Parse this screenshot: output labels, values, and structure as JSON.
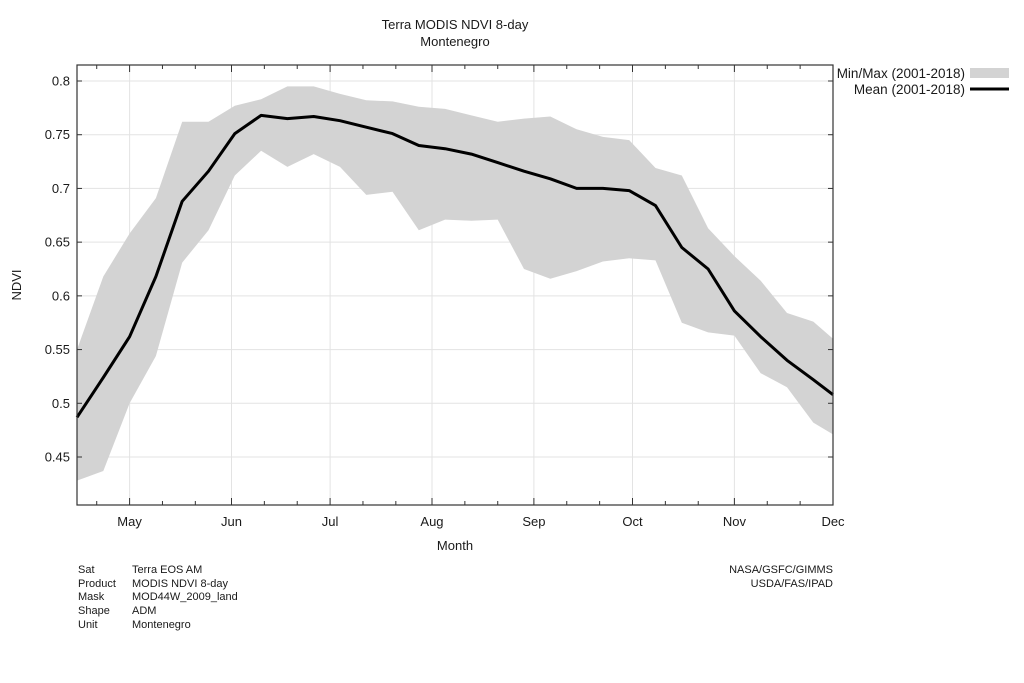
{
  "chart_data": {
    "type": "area",
    "title": "Terra MODIS NDVI 8-day",
    "subtitle": "Montenegro",
    "xlabel": "Month",
    "ylabel": "NDVI",
    "x_unit": "day_of_year",
    "xlim": [
      105,
      335
    ],
    "ylim": [
      0.41,
      0.815
    ],
    "grid": true,
    "legend_position": "outside-top-right",
    "x_ticks": [
      {
        "label": "May",
        "doy": 121
      },
      {
        "label": "Jun",
        "doy": 152
      },
      {
        "label": "Jul",
        "doy": 182
      },
      {
        "label": "Aug",
        "doy": 213
      },
      {
        "label": "Sep",
        "doy": 244
      },
      {
        "label": "Oct",
        "doy": 274
      },
      {
        "label": "Nov",
        "doy": 305
      },
      {
        "label": "Dec",
        "doy": 335
      }
    ],
    "x_minor_ticks": [
      111,
      131,
      141,
      162,
      172,
      192,
      202,
      223,
      233,
      254,
      264,
      284,
      294,
      315,
      325
    ],
    "y_ticks": [
      {
        "label": "0.8",
        "value": 0.8
      },
      {
        "label": "0.75",
        "value": 0.75
      },
      {
        "label": "0.7",
        "value": 0.7
      },
      {
        "label": "0.65",
        "value": 0.65
      },
      {
        "label": "0.6",
        "value": 0.6
      },
      {
        "label": "0.55",
        "value": 0.55
      },
      {
        "label": "0.5",
        "value": 0.5
      },
      {
        "label": "0.45",
        "value": 0.45
      }
    ],
    "x": [
      105,
      113,
      121,
      129,
      137,
      145,
      153,
      161,
      169,
      177,
      185,
      193,
      201,
      209,
      217,
      225,
      233,
      241,
      249,
      257,
      265,
      273,
      281,
      289,
      297,
      305,
      313,
      321,
      329,
      335
    ],
    "series": [
      {
        "name": "Min/Max (2001-2018)",
        "kind": "band",
        "color": "#d3d3d3",
        "min": [
          0.428,
          0.437,
          0.5,
          0.544,
          0.631,
          0.661,
          0.712,
          0.735,
          0.72,
          0.732,
          0.72,
          0.694,
          0.697,
          0.661,
          0.671,
          0.67,
          0.671,
          0.625,
          0.616,
          0.623,
          0.632,
          0.635,
          0.633,
          0.575,
          0.566,
          0.563,
          0.528,
          0.515,
          0.482,
          0.471
        ],
        "max": [
          0.55,
          0.618,
          0.658,
          0.691,
          0.762,
          0.762,
          0.777,
          0.783,
          0.795,
          0.795,
          0.788,
          0.782,
          0.781,
          0.776,
          0.774,
          0.768,
          0.762,
          0.765,
          0.767,
          0.755,
          0.748,
          0.745,
          0.719,
          0.712,
          0.663,
          0.637,
          0.614,
          0.584,
          0.576,
          0.56
        ]
      },
      {
        "name": "Mean (2001-2018)",
        "kind": "line",
        "color": "#000000",
        "values": [
          0.487,
          0.524,
          0.562,
          0.618,
          0.688,
          0.716,
          0.751,
          0.768,
          0.765,
          0.767,
          0.763,
          0.757,
          0.751,
          0.74,
          0.737,
          0.732,
          0.724,
          0.716,
          0.709,
          0.7,
          0.7,
          0.698,
          0.684,
          0.645,
          0.625,
          0.586,
          0.562,
          0.54,
          0.522,
          0.508
        ]
      }
    ]
  },
  "legend": [
    {
      "label": "Min/Max (2001-2018)",
      "swatch": "band",
      "color": "#d3d3d3"
    },
    {
      "label": "Mean (2001-2018)",
      "swatch": "line",
      "color": "#000000"
    }
  ],
  "metadata": [
    {
      "key": "Sat",
      "value": "Terra EOS AM"
    },
    {
      "key": "Product",
      "value": "MODIS NDVI 8-day"
    },
    {
      "key": "Mask",
      "value": "MOD44W_2009_land"
    },
    {
      "key": "Shape",
      "value": "ADM"
    },
    {
      "key": "Unit",
      "value": "Montenegro"
    }
  ],
  "credits": [
    "NASA/GSFC/GIMMS",
    "USDA/FAS/IPAD"
  ]
}
